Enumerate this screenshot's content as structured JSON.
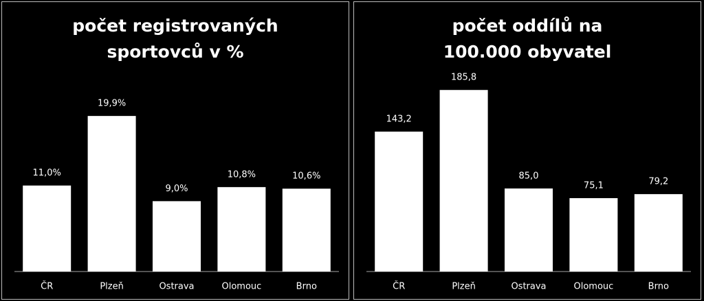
{
  "chart_data": [
    {
      "type": "bar",
      "title": "počet registrovaných sportovců v %",
      "categories": [
        "ČR",
        "Plzeň",
        "Ostrava",
        "Olomouc",
        "Brno"
      ],
      "values": [
        11.0,
        19.9,
        9.0,
        10.8,
        10.6
      ],
      "value_labels": [
        "11,0%",
        "19,9%",
        "9,0%",
        "10,8%",
        "10,6%"
      ],
      "color": "#ffffff",
      "ylim": [
        0,
        25
      ]
    },
    {
      "type": "bar",
      "title": "počet oddílů na 100.000 obyvatel",
      "categories": [
        "ČR",
        "Plzeň",
        "Ostrava",
        "Olomouc",
        "Brno"
      ],
      "values": [
        143.2,
        185.8,
        85.0,
        75.1,
        79.2
      ],
      "value_labels": [
        "143,2",
        "185,8",
        "85,0",
        "75,1",
        "79,2"
      ],
      "color": "#ffffff",
      "ylim": [
        0,
        200
      ]
    }
  ]
}
